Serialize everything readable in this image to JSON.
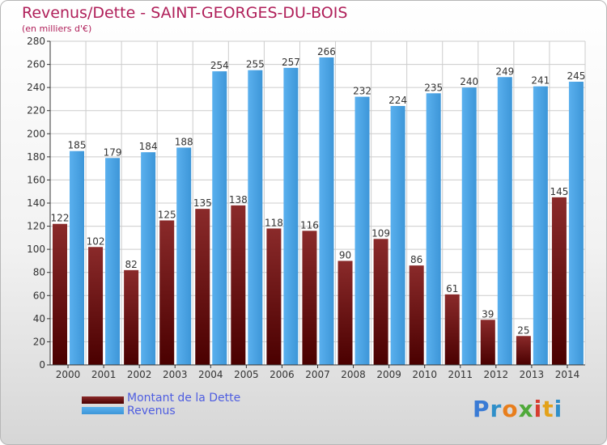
{
  "header": {
    "title": "Revenus/Dette - SAINT-GEORGES-DU-BOIS",
    "subtitle": "(en milliers d'€)"
  },
  "colors": {
    "title": "#b0205a",
    "debt_bar": "#6b1010",
    "revenue_bar": "#4ea6e6",
    "legend_text": "#4e5de0"
  },
  "logo": {
    "letters": [
      "P",
      "r",
      "o",
      "x",
      "i",
      "t",
      "i"
    ],
    "colors": [
      "#3a7bd5",
      "#2f8fc9",
      "#e87e1c",
      "#4fa93a",
      "#d63c2f",
      "#e3a21a",
      "#2f8fc9"
    ]
  },
  "chart_data": {
    "type": "bar",
    "title": "Revenus/Dette - SAINT-GEORGES-DU-BOIS",
    "subtitle": "(en milliers d'€)",
    "categories": [
      "2000",
      "2001",
      "2002",
      "2003",
      "2004",
      "2005",
      "2006",
      "2007",
      "2008",
      "2009",
      "2010",
      "2011",
      "2012",
      "2013",
      "2014"
    ],
    "series": [
      {
        "name": "Montant de la Dette",
        "color": "#6b1010",
        "values": [
          122,
          102,
          82,
          125,
          135,
          138,
          118,
          116,
          90,
          109,
          86,
          61,
          39,
          25,
          145
        ]
      },
      {
        "name": "Revenus",
        "color": "#4ea6e6",
        "values": [
          185,
          179,
          184,
          188,
          254,
          255,
          257,
          266,
          232,
          224,
          235,
          240,
          249,
          241,
          245
        ]
      }
    ],
    "ylim": [
      0,
      280
    ],
    "yticks": [
      0,
      20,
      40,
      60,
      80,
      100,
      120,
      140,
      160,
      180,
      200,
      220,
      240,
      260,
      280
    ],
    "grid": true,
    "legend_position": "bottom-left"
  }
}
